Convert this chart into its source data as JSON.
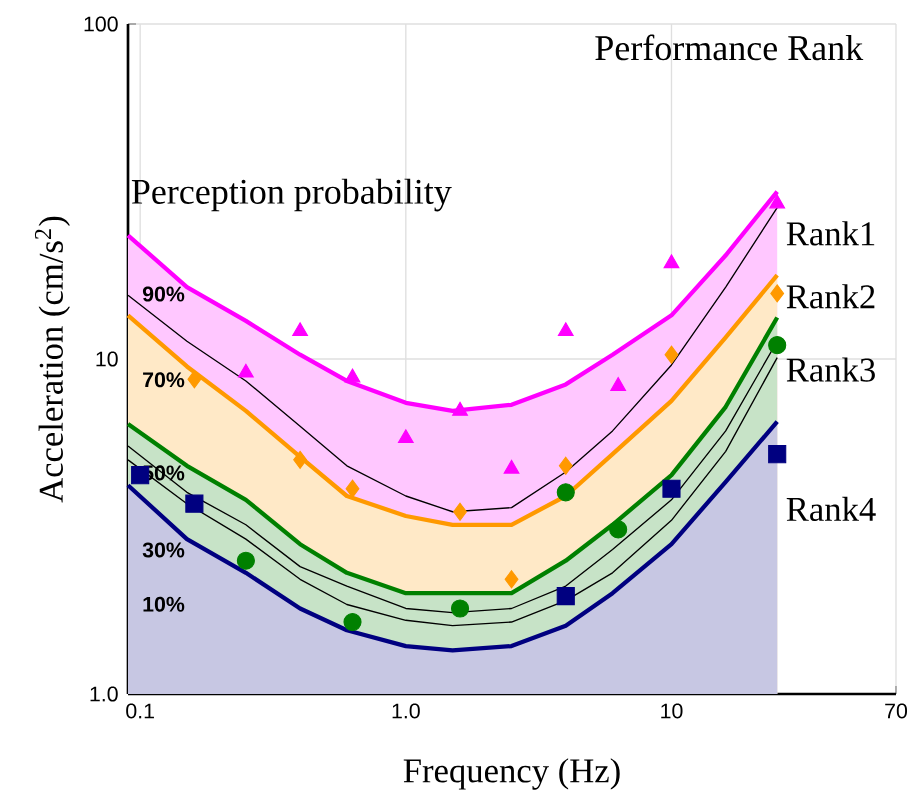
{
  "chart_data": {
    "type": "line",
    "title": "Performance Rank",
    "xlabel": "Frequency (Hz)",
    "ylabel": "Acceleration (cm/s$^{2}$)",
    "log": "xy",
    "grid": true,
    "xlim": [
      0.09,
      70
    ],
    "ylim": [
      1,
      100
    ],
    "xticks": [
      0.1,
      {
        "value": 1,
        "label": "1.0"
      },
      10,
      70
    ],
    "yticks": [
      {
        "value": 1,
        "label": "1.0"
      },
      10,
      100
    ],
    "x": [
      0.09,
      0.15,
      0.25,
      0.4,
      0.6,
      1.0,
      1.5,
      2.5,
      4,
      6,
      10,
      16,
      25
    ],
    "series": [
      {
        "type": "area",
        "name": "Rank1",
        "color": "#ff00ff",
        "values": [
          23.4,
          16.4,
          13.0,
          10.3,
          8.6,
          7.4,
          7.0,
          7.3,
          8.4,
          10.3,
          13.5,
          20.4,
          31.6
        ]
      },
      {
        "color": "#000000",
        "values": [
          15.5,
          11.3,
          8.6,
          6.3,
          4.8,
          3.9,
          3.5,
          3.6,
          4.6,
          6.1,
          9.6,
          16.4,
          28.3
        ]
      },
      {
        "type": "area",
        "name": "Rank2",
        "color": "#ff9900",
        "values": [
          13.5,
          9.5,
          7.0,
          5.1,
          3.9,
          3.4,
          3.2,
          3.2,
          3.9,
          5.2,
          7.5,
          11.6,
          17.8
        ]
      },
      {
        "type": "area",
        "name": "Rank3",
        "color": "#008000",
        "values": [
          6.4,
          4.8,
          3.8,
          2.8,
          2.3,
          2.0,
          2.0,
          2.0,
          2.5,
          3.2,
          4.5,
          7.2,
          13.3
        ]
      },
      {
        "color": "#000000",
        "values": [
          5.5,
          4.0,
          3.2,
          2.4,
          2.1,
          1.8,
          1.75,
          1.8,
          2.1,
          2.7,
          3.8,
          6.1,
          11.3
        ]
      },
      {
        "color": "#000000",
        "values": [
          5.0,
          3.7,
          2.9,
          2.2,
          1.85,
          1.66,
          1.6,
          1.64,
          1.9,
          2.3,
          3.3,
          5.3,
          10.1
        ]
      },
      {
        "type": "area",
        "name": "Rank4",
        "color": "#000080",
        "values": [
          4.2,
          2.9,
          2.3,
          1.8,
          1.55,
          1.39,
          1.35,
          1.39,
          1.6,
          2.0,
          2.8,
          4.3,
          6.5
        ]
      },
      {
        "type": "scatter",
        "marker": "triangle",
        "color": "#ff00ff",
        "x": [
          0.25,
          0.4,
          0.63,
          1.0,
          1.6,
          2.5,
          4,
          6.3,
          10,
          25
        ],
        "values": [
          9.1,
          12.1,
          8.8,
          5.8,
          7.0,
          4.7,
          12.1,
          8.3,
          19.3,
          29.1
        ]
      },
      {
        "type": "scatter",
        "marker": "diamond",
        "color": "#ff9900",
        "x": [
          0.16,
          0.4,
          0.63,
          1.6,
          2.5,
          4,
          10,
          25
        ],
        "values": [
          8.7,
          5.0,
          4.1,
          3.5,
          2.2,
          4.8,
          10.3,
          15.7
        ]
      },
      {
        "type": "scatter",
        "marker": "circle",
        "color": "#008000",
        "x": [
          0.25,
          0.63,
          1.6,
          4,
          6.3,
          25
        ],
        "values": [
          2.5,
          1.64,
          1.8,
          4.0,
          3.1,
          11.0
        ]
      },
      {
        "type": "scatter",
        "marker": "square",
        "color": "#000080",
        "x": [
          0.1,
          0.16,
          4,
          10,
          25
        ],
        "values": [
          4.5,
          3.7,
          1.96,
          4.1,
          5.2
        ]
      }
    ],
    "annotations": [
      "Perception probability",
      "90%",
      "70%",
      "50%",
      "30%",
      "10%"
    ]
  }
}
